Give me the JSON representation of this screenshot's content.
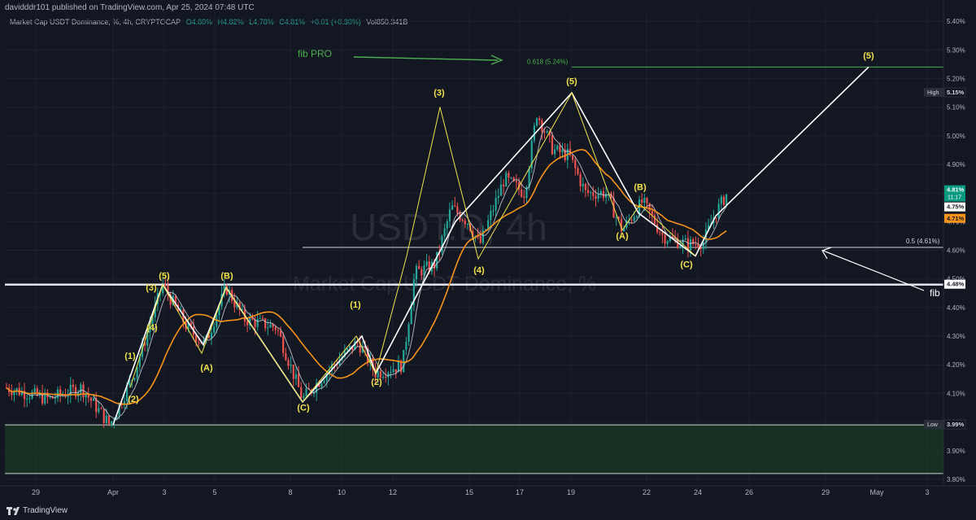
{
  "header": {
    "publisher_line": "davidddr101 published on TradingView.com, Apr 25, 2024 07:48 UTC",
    "symbol": "Market Cap USDT Dominance, %, 4h, CRYPTOCAP",
    "open": "O4.80%",
    "high": "H4.82%",
    "low": "L4.78%",
    "close": "C4.81%",
    "change": "+0.01 (+0.30%)",
    "volume": "Vol850.341B"
  },
  "watermark": {
    "big": "USDT.D, 4h",
    "small": "Market Cap USDT Dominance, %"
  },
  "footer": {
    "brand": "TradingView"
  },
  "colors": {
    "up": "#26a69a",
    "down": "#ef5350",
    "accent": "#f2e34c",
    "ma_fast": "#d1d4dc",
    "ma_slow": "#f7931a",
    "fib_pro": "#4caf50"
  },
  "chart_data": {
    "type": "candlestick",
    "ylim": [
      3.78,
      5.44
    ],
    "y_ticks": [
      "5.40%",
      "5.30%",
      "5.20%",
      "5.10%",
      "5.00%",
      "4.90%",
      "4.80%",
      "4.70%",
      "4.60%",
      "4.50%",
      "4.40%",
      "4.30%",
      "4.20%",
      "4.10%",
      "4.00%",
      "3.90%",
      "3.80%"
    ],
    "x_ticks": [
      "29",
      "Apr",
      "3",
      "5",
      "8",
      "10",
      "12",
      "15",
      "17",
      "19",
      "22",
      "24",
      "26",
      "29",
      "May",
      "3"
    ],
    "price_tags": [
      {
        "label": "High",
        "value": "5.15%"
      },
      {
        "label": "",
        "value": "4.81%",
        "sub": "11:17"
      },
      {
        "label": "",
        "value": "4.75%"
      },
      {
        "label": "",
        "value": "4.71%"
      },
      {
        "label": "",
        "value": "4.48%"
      },
      {
        "label": "Low",
        "value": "3.99%"
      }
    ],
    "levels": [
      {
        "label": "0.618 (5.24%)",
        "value": 5.24
      },
      {
        "label": "0.5 (4.61%)",
        "value": 4.61
      },
      {
        "label": "",
        "value": 4.48
      },
      {
        "label": "",
        "value": 3.99
      }
    ],
    "zone": [
      3.82,
      3.99
    ],
    "annotations": [
      {
        "text": "fib PRO"
      },
      {
        "text": "fib"
      }
    ],
    "wave_labels": [
      "(1)",
      "(2)",
      "(3)",
      "(4)",
      "(5)",
      "(A)",
      "(B)",
      "(C)",
      "(1)",
      "(2)",
      "(3)",
      "(4)",
      "(5)",
      "(A)",
      "(B)",
      "(C)",
      "(5)"
    ]
  }
}
